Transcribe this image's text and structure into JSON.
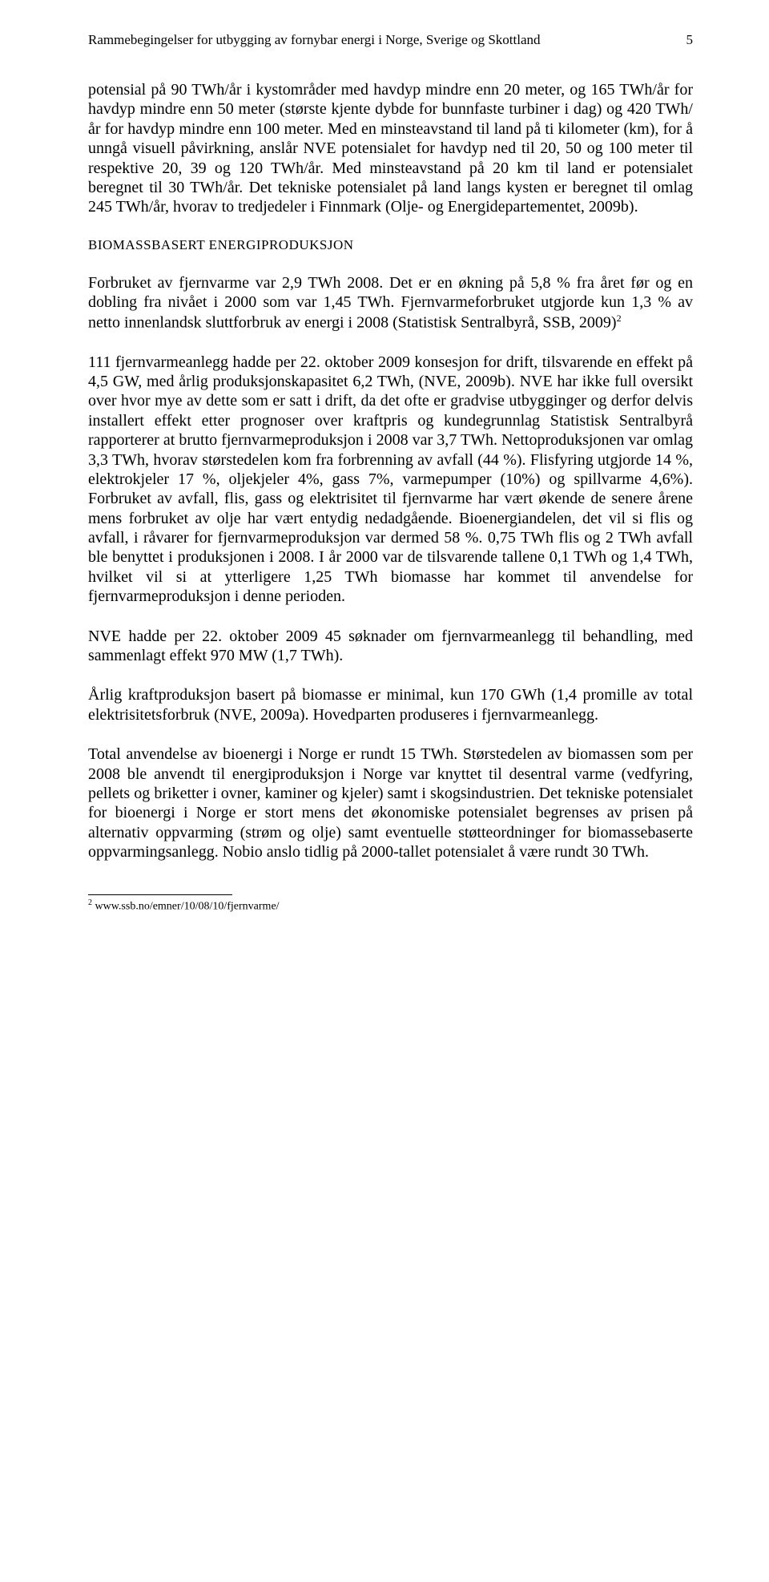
{
  "header": {
    "title": "Rammebegingelser for utbygging av fornybar energi i Norge, Sverige og Skottland",
    "page_number": "5"
  },
  "paragraphs": {
    "p1": "potensial på 90 TWh/år i kystområder med havdyp mindre enn 20 meter, og 165 TWh/år for havdyp mindre enn 50 meter (største kjente dybde for bunnfaste turbiner i dag) og 420 TWh/år for havdyp mindre enn 100 meter. Med en minsteavstand til land på ti kilometer (km), for å unngå visuell påvirkning, anslår NVE potensialet for havdyp ned til 20, 50 og 100 meter til respektive 20, 39 og 120 TWh/år. Med minsteavstand på 20 km til land er potensialet beregnet til 30 TWh/år. Det tekniske potensialet på land langs kysten er beregnet til omlag 245 TWh/år, hvorav to tredje­deler i Finnmark (Olje- og Energidepartementet, 2009b).",
    "p2_a": "Forbruket av fjernvarme var 2,9 TWh 2008. Det er en økning på 5,8 % fra året før og en dobling fra nivået i 2000 som var 1,45 TWh. Fjern­varmeforbruket utgjorde kun 1,3 % av netto innenlandsk sluttforbruk av energi i 2008 (Statistisk Sentralbyrå, SSB, 2009)",
    "p3": "111 fjernvarmeanlegg hadde per 22. oktober 2009 konsesjon for drift, til­svarende en effekt på 4,5 GW, med årlig produksjonskapasitet 6,2 TWh, (NVE, 2009b). NVE har ikke full oversikt over hvor mye av dette som er satt i drift, da det ofte er gradvise utbygginger og derfor delvis installert effekt etter prognoser over kraftpris og kundegrunnlag Statistisk Sentral­byrå rapporterer at brutto fjernvarmeproduksjon i 2008 var 3,7 TWh. Nettoproduksjonen var omlag 3,3 TWh, hvorav størstedelen kom fra forbrenning av avfall (44 %). Flisfyring utgjorde 14 %, elektrokjeler 17 %, oljekjeler 4%, gass 7%, varmepumper (10%) og spillvarme 4,6%). Forbruket av avfall, flis, gass og elektrisitet til fjernvarme har vært øk­ende de senere årene mens forbruket av olje har vært entydig nedad­gående. Bioenergiandelen, det vil si flis og avfall, i råvarer for fjern­varmeproduksjon var dermed 58 %. 0,75 TWh flis og 2 TWh avfall ble benyttet i produksjonen i 2008. I år 2000 var de tilsvarende tallene 0,1 TWh og 1,4 TWh, hvilket vil si at ytterligere 1,25 TWh biomasse har kommet til anvendelse for fjernvarmeproduksjon i denne perioden.",
    "p4": "NVE hadde per 22. oktober 2009 45 søknader om fjernvarmeanlegg til behandling, med sammenlagt effekt 970 MW (1,7 TWh).",
    "p5": "Årlig kraftproduksjon basert på biomasse er minimal, kun 170 GWh (1,4 promille av total elektrisitetsforbruk (NVE, 2009a). Hovedparten produ­seres i fjernvarmeanlegg.",
    "p6": "Total anvendelse av bioenergi i Norge er rundt 15 TWh. Størstedelen av biomassen som per 2008 ble anvendt til energiproduksjon i Norge var knyttet til desentral varme (vedfyring, pellets og briketter i ovner, kamin­er og kjeler) samt i skogsindustrien. Det tekniske potensialet for bioenergi i Norge er stort mens det økonomiske potensialet begrenses av prisen på alternativ oppvarming (strøm og olje) samt eventuelle støtteordninger for biomassebaserte oppvarmingsanlegg. Nobio anslo tidlig på 2000-tallet potensialet å være rundt 30 TWh."
  },
  "section_heading": "BIOMASSBASERT ENERGIPRODUKSJON",
  "footnote": {
    "marker": "2",
    "text": " www.ssb.no/emner/10/08/10/fjernvarme/"
  }
}
